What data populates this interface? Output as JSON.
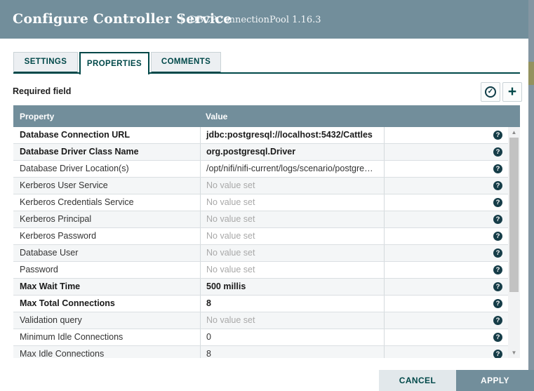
{
  "header": {
    "title": "Configure Controller Service",
    "separator": "|",
    "subtitle": "DBCPConnectionPool 1.16.3"
  },
  "tabs": [
    {
      "label": "SETTINGS",
      "active": false
    },
    {
      "label": "PROPERTIES",
      "active": true
    },
    {
      "label": "COMMENTS",
      "active": false
    }
  ],
  "toolbar": {
    "required_label": "Required field",
    "verify_icon": "check-circle-icon",
    "add_icon": "plus-icon",
    "check_glyph": "✓",
    "plus_glyph": "+"
  },
  "table": {
    "columns": [
      "Property",
      "Value"
    ],
    "help_glyph": "?",
    "empty_value_text": "No value set",
    "rows": [
      {
        "property": "Database Connection URL",
        "value": "jdbc:postgresql://localhost:5432/Cattles",
        "required": true,
        "empty": false
      },
      {
        "property": "Database Driver Class Name",
        "value": "org.postgresql.Driver",
        "required": true,
        "empty": false
      },
      {
        "property": "Database Driver Location(s)",
        "value": "/opt/nifi/nifi-current/logs/scenario/postgre…",
        "required": false,
        "empty": false
      },
      {
        "property": "Kerberos User Service",
        "value": "No value set",
        "required": false,
        "empty": true
      },
      {
        "property": "Kerberos Credentials Service",
        "value": "No value set",
        "required": false,
        "empty": true
      },
      {
        "property": "Kerberos Principal",
        "value": "No value set",
        "required": false,
        "empty": true
      },
      {
        "property": "Kerberos Password",
        "value": "No value set",
        "required": false,
        "empty": true
      },
      {
        "property": "Database User",
        "value": "No value set",
        "required": false,
        "empty": true
      },
      {
        "property": "Password",
        "value": "No value set",
        "required": false,
        "empty": true
      },
      {
        "property": "Max Wait Time",
        "value": "500 millis",
        "required": true,
        "empty": false
      },
      {
        "property": "Max Total Connections",
        "value": "8",
        "required": true,
        "empty": false
      },
      {
        "property": "Validation query",
        "value": "No value set",
        "required": false,
        "empty": true
      },
      {
        "property": "Minimum Idle Connections",
        "value": "0",
        "required": false,
        "empty": false
      },
      {
        "property": "Max Idle Connections",
        "value": "8",
        "required": false,
        "empty": false
      }
    ]
  },
  "scrollbar": {
    "up_glyph": "▲",
    "down_glyph": "▼"
  },
  "footer": {
    "cancel_label": "CANCEL",
    "apply_label": "APPLY"
  },
  "colors": {
    "header_bg": "#728E9B",
    "accent_teal": "#004849",
    "row_alt_bg": "#F4F6F7",
    "empty_text": "#A9A9A9",
    "cancel_bg": "#E2E8EB",
    "apply_bg": "#728E9B"
  }
}
